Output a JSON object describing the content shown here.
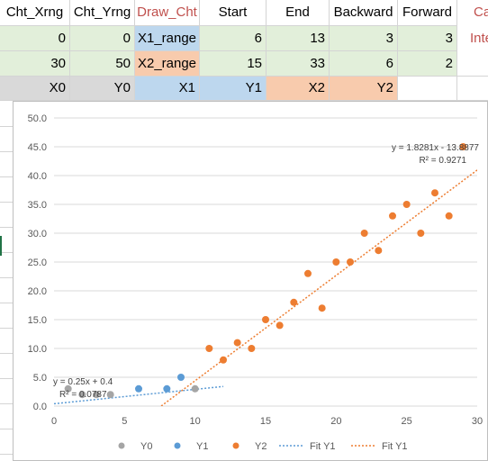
{
  "headers": [
    "Cht_Xrng",
    "Cht_Yrng",
    "Draw_Cht",
    "Start",
    "End",
    "Backward",
    "Forward",
    "Ca"
  ],
  "row2": [
    "0",
    "0",
    "X1_range",
    "6",
    "13",
    "3",
    "3",
    "Inte"
  ],
  "row3": [
    "30",
    "50",
    "X2_range",
    "15",
    "33",
    "6",
    "2"
  ],
  "row4": [
    "X0",
    "Y0",
    "X1",
    "Y1",
    "X2",
    "Y2"
  ],
  "colors": {
    "y0": "#a5a5a5",
    "y1": "#5b9bd5",
    "y2": "#ed7d31",
    "fit_y1": "#5b9bd5",
    "fit_y2": "#ed7d31",
    "header_red": "#c0504d",
    "green_fill": "#e2efda",
    "blue_fill": "#bdd7ee",
    "orange_fill": "#f8cbad",
    "gray_fill": "#d9d9d9"
  },
  "chart_data": {
    "type": "scatter",
    "xlim": [
      0,
      30
    ],
    "ylim": [
      0,
      50
    ],
    "x_ticks": [
      "0",
      "5",
      "10",
      "15",
      "20",
      "25",
      "30"
    ],
    "y_ticks": [
      "0.0",
      "5.0",
      "10.0",
      "15.0",
      "20.0",
      "25.0",
      "30.0",
      "35.0",
      "40.0",
      "45.0",
      "50.0"
    ],
    "grid": "horizontal",
    "legend_position": "bottom",
    "series": [
      {
        "name": "Y0",
        "x": [
          1,
          2,
          3,
          4,
          10
        ],
        "y": [
          3,
          2,
          2,
          2,
          3
        ]
      },
      {
        "name": "Y1",
        "x": [
          6,
          8,
          9
        ],
        "y": [
          3,
          3,
          5
        ]
      },
      {
        "name": "Y2",
        "x": [
          11,
          12,
          13,
          14,
          15,
          16,
          17,
          18,
          19,
          20,
          21,
          22,
          23,
          24,
          25,
          26,
          27,
          28,
          29
        ],
        "y": [
          10,
          8,
          11,
          10,
          15,
          14,
          18,
          23,
          17,
          25,
          25,
          30,
          27,
          33,
          35,
          30,
          37,
          33,
          45
        ]
      }
    ],
    "trendlines": [
      {
        "name": "Fit Y1",
        "slope": 0.25,
        "intercept": 0.4,
        "x_range": [
          0,
          12
        ],
        "equation": "y = 0.25x + 0.4",
        "r2": "R² = 0.0787"
      },
      {
        "name": "Fit Y1",
        "slope": 1.8281,
        "intercept": -13.8877,
        "x_range": [
          7.6,
          31
        ],
        "equation": "y = 1.8281x - 13.8877",
        "r2": "R² = 0.9271"
      }
    ],
    "legend": [
      "Y0",
      "Y1",
      "Y2",
      "Fit Y1",
      "Fit Y1"
    ]
  }
}
